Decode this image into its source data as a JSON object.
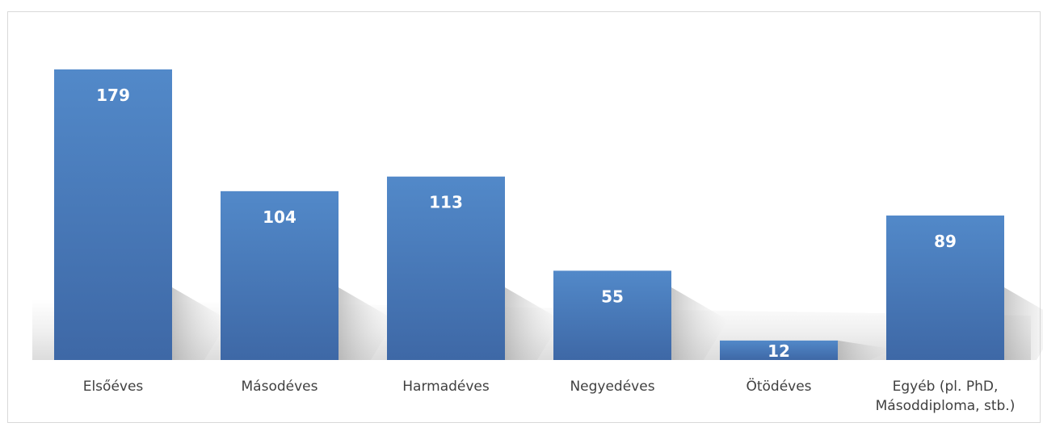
{
  "chart_data": {
    "type": "bar",
    "categories": [
      [
        "Elsőéves"
      ],
      [
        "Másodéves"
      ],
      [
        "Harmadéves"
      ],
      [
        "Negyedéves"
      ],
      [
        "Ötödéves"
      ],
      [
        "Egyéb (pl. PhD,",
        "Másoddiploma, stb.)"
      ]
    ],
    "values": [
      179,
      104,
      113,
      55,
      12,
      89
    ],
    "data_labels": [
      "179",
      "104",
      "113",
      "55",
      "12",
      "89"
    ],
    "title": "",
    "xlabel": "",
    "ylabel": "",
    "ylim": [
      0,
      180
    ],
    "grid": false,
    "legend": "none",
    "bar_color": "#4a7ab9",
    "bar_color_light": "#5289c9",
    "bar_color_dark": "#3e68a6"
  }
}
